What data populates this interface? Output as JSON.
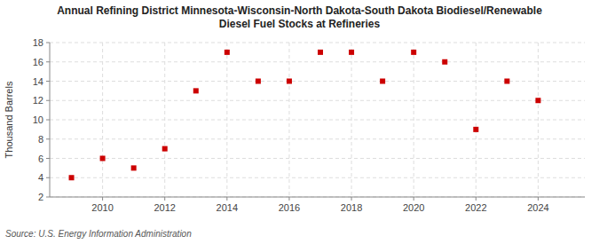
{
  "chart_data": {
    "type": "scatter",
    "title": "Annual Refining District Minnesota-Wisconsin-North Dakota-South Dakota Biodiesel/Renewable\nDiesel Fuel Stocks at Refineries",
    "y_label": "Thousand Barrels",
    "annotations": [
      "Source: U.S. Energy Information Administration"
    ],
    "x": [
      2009,
      2010,
      2011,
      2012,
      2013,
      2014,
      2015,
      2016,
      2017,
      2018,
      2019,
      2020,
      2021,
      2022,
      2023,
      2024
    ],
    "values": [
      4,
      6,
      5,
      7,
      13,
      17,
      14,
      14,
      17,
      17,
      14,
      17,
      16,
      9,
      14,
      12
    ],
    "color": "#cc0000",
    "marker": "square",
    "xlim": [
      2008.3,
      2025.5
    ],
    "xticks": [
      2010,
      2012,
      2014,
      2016,
      2018,
      2020,
      2022,
      2024
    ],
    "ylim": [
      2,
      18
    ],
    "yticks": [
      2,
      4,
      6,
      8,
      10,
      12,
      14,
      16,
      18
    ],
    "grid": true
  }
}
